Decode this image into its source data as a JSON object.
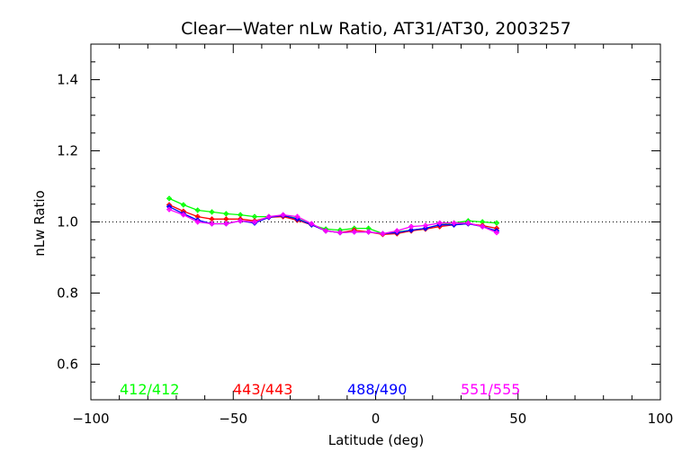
{
  "chart_data": {
    "type": "line",
    "title": "Clear—Water nLw Ratio, AT31/AT30, 2003257",
    "xlabel": "Latitude (deg)",
    "ylabel": "nLw Ratio",
    "xlim": [
      -100,
      100
    ],
    "ylim": [
      0.5,
      1.5
    ],
    "xticks": [
      -100,
      -50,
      0,
      50,
      100
    ],
    "xtick_labels": [
      "−100",
      "−50",
      "0",
      "50",
      "100"
    ],
    "xminor_step": 10,
    "yticks": [
      0.6,
      0.8,
      1.0,
      1.2,
      1.4
    ],
    "ytick_labels": [
      "0.6",
      "0.8",
      "1.0",
      "1.2",
      "1.4"
    ],
    "yminor_step": 0.05,
    "reference_line": 1.0,
    "grid": false,
    "legend_placement": "bottom",
    "x": [
      -72.5,
      -67.5,
      -62.5,
      -57.5,
      -52.5,
      -47.5,
      -42.5,
      -37.5,
      -32.5,
      -27.5,
      -22.5,
      -17.5,
      -12.5,
      -7.5,
      -2.5,
      2.5,
      7.5,
      12.5,
      17.5,
      22.5,
      27.5,
      32.5,
      37.5,
      42.5
    ],
    "series": [
      {
        "name": "412/412",
        "color": "#00ff00",
        "values": [
          1.066,
          1.048,
          1.033,
          1.028,
          1.023,
          1.02,
          1.015,
          1.015,
          1.018,
          1.01,
          0.992,
          0.98,
          0.977,
          0.982,
          0.982,
          0.967,
          0.972,
          0.977,
          0.982,
          0.992,
          0.997,
          1.003,
          1.0,
          0.997
        ]
      },
      {
        "name": "443/443",
        "color": "#ff0000",
        "values": [
          1.048,
          1.03,
          1.015,
          1.008,
          1.008,
          1.008,
          1.003,
          1.013,
          1.015,
          1.005,
          0.992,
          0.975,
          0.97,
          0.977,
          0.972,
          0.965,
          0.967,
          0.975,
          0.98,
          0.987,
          0.992,
          0.995,
          0.99,
          0.982
        ]
      },
      {
        "name": "488/490",
        "color": "#0000ff",
        "values": [
          1.043,
          1.023,
          1.005,
          0.995,
          0.995,
          1.003,
          0.997,
          1.013,
          1.018,
          1.008,
          0.992,
          0.975,
          0.97,
          0.972,
          0.972,
          0.967,
          0.97,
          0.977,
          0.982,
          0.992,
          0.992,
          0.995,
          0.987,
          0.975
        ]
      },
      {
        "name": "551/555",
        "color": "#ff00ff",
        "values": [
          1.035,
          1.02,
          1.0,
          0.995,
          0.995,
          1.003,
          1.0,
          1.015,
          1.02,
          1.015,
          0.995,
          0.975,
          0.97,
          0.972,
          0.972,
          0.967,
          0.975,
          0.987,
          0.99,
          0.997,
          0.997,
          0.997,
          0.987,
          0.97
        ]
      }
    ]
  }
}
